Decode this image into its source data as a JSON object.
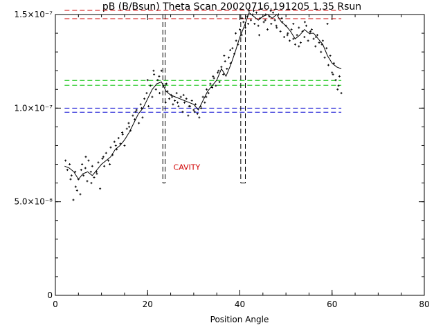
{
  "chart_data": {
    "type": "scatter",
    "title": "pB (B/Bsun) Theta Scan 20020716.191205 1.35 Rsun",
    "xlabel": "Position Angle",
    "ylabel": "",
    "xlim": [
      0,
      80
    ],
    "ylim": [
      0,
      1.5e-07
    ],
    "grid": false,
    "x_ticks": [
      {
        "value": 0,
        "label": "0"
      },
      {
        "value": 20,
        "label": "20"
      },
      {
        "value": 40,
        "label": "40"
      },
      {
        "value": 60,
        "label": "60"
      },
      {
        "value": 80,
        "label": "80"
      }
    ],
    "y_ticks": [
      {
        "value": 0,
        "label": "0"
      },
      {
        "value": 5e-08,
        "label": "5.0×10⁻⁸"
      },
      {
        "value": 1e-07,
        "label": "1.0×10⁻⁷"
      },
      {
        "value": 1.5e-07,
        "label": "1.5×10⁻⁷"
      }
    ],
    "annotations": [
      {
        "text": "CAVITY",
        "x": 28.5,
        "y": 6.7e-08,
        "color": "#d00000"
      }
    ],
    "reference_lines": [
      {
        "y": 1.522e-07,
        "x_range": [
          2,
          62
        ],
        "color": "#d00000",
        "style": "dashed"
      },
      {
        "y": 1.478e-07,
        "x_range": [
          2,
          62
        ],
        "color": "#d00000",
        "style": "dashed"
      },
      {
        "y": 1.148e-07,
        "x_range": [
          2,
          62
        ],
        "color": "#00c000",
        "style": "dashed"
      },
      {
        "y": 1.122e-07,
        "x_range": [
          2,
          62
        ],
        "color": "#00c000",
        "style": "dashed"
      },
      {
        "y": 1e-07,
        "x_range": [
          2,
          62
        ],
        "color": "#0000d0",
        "style": "dashed"
      },
      {
        "y": 9.78e-08,
        "x_range": [
          2,
          62
        ],
        "color": "#0000d0",
        "style": "dashed"
      }
    ],
    "cavity_boundaries": [
      {
        "x": [
          23.3,
          23.8
        ],
        "y_range": [
          6e-08,
          1.5e-07
        ],
        "color": "#000000",
        "style": "dashed"
      },
      {
        "x": [
          40.2,
          41.2
        ],
        "y_range": [
          6e-08,
          1.5e-07
        ],
        "color": "#000000",
        "style": "dashed"
      }
    ],
    "series": [
      {
        "kind": "smoothed-line",
        "color": "#000000",
        "x": [
          2,
          3,
          4,
          5,
          6,
          7,
          8,
          9,
          10,
          11,
          12,
          13,
          14,
          15,
          16,
          17,
          18,
          19,
          20,
          21,
          22,
          23,
          24,
          25,
          26,
          27,
          28,
          29,
          30,
          31,
          32,
          33,
          34,
          35,
          36,
          37,
          38,
          39,
          40,
          41,
          42,
          43,
          44,
          45,
          46,
          47,
          48,
          49,
          50,
          51,
          52,
          53,
          54,
          55,
          56,
          57,
          58,
          59,
          60,
          61,
          62
        ],
        "y": [
          6.9e-08,
          6.8e-08,
          6.6e-08,
          6.2e-08,
          6.5e-08,
          6.6e-08,
          6.4e-08,
          6.7e-08,
          7e-08,
          7.2e-08,
          7.4e-08,
          7.8e-08,
          8e-08,
          8.3e-08,
          8.7e-08,
          9.2e-08,
          9.7e-08,
          1e-07,
          1.05e-07,
          1.1e-07,
          1.13e-07,
          1.14e-07,
          1.09e-07,
          1.07e-07,
          1.06e-07,
          1.05e-07,
          1.04e-07,
          1.03e-07,
          1.02e-07,
          9.9e-08,
          1.04e-07,
          1.09e-07,
          1.12e-07,
          1.15e-07,
          1.21e-07,
          1.17e-07,
          1.23e-07,
          1.3e-07,
          1.38e-07,
          1.44e-07,
          1.51e-07,
          1.49e-07,
          1.47e-07,
          1.49e-07,
          1.5e-07,
          1.48e-07,
          1.5e-07,
          1.46e-07,
          1.44e-07,
          1.41e-07,
          1.37e-07,
          1.39e-07,
          1.42e-07,
          1.4e-07,
          1.4e-07,
          1.37e-07,
          1.34e-07,
          1.28e-07,
          1.24e-07,
          1.22e-07,
          1.21e-07
        ]
      },
      {
        "kind": "points",
        "color": "#000000",
        "marker": "+",
        "x": [
          2.2,
          2.6,
          3.1,
          3.5,
          3.9,
          4.3,
          4.7,
          5.0,
          5.4,
          5.8,
          6.1,
          6.5,
          6.9,
          7.2,
          7.7,
          8.0,
          8.4,
          8.9,
          9.3,
          9.7,
          10.2,
          10.6,
          11.0,
          11.5,
          12.0,
          12.4,
          12.8,
          13.3,
          13.7,
          14.1,
          14.6,
          15.0,
          15.5,
          15.9,
          16.3,
          16.8,
          17.2,
          17.6,
          18.1,
          18.5,
          18.9,
          19.3,
          19.8,
          20.2,
          20.6,
          21.0,
          21.4,
          21.8,
          22.2,
          22.6,
          23.0,
          23.4,
          23.9,
          24.3,
          24.7,
          25.1,
          25.5,
          25.9,
          26.3,
          26.7,
          27.2,
          27.6,
          28.0,
          28.4,
          28.8,
          29.2,
          29.6,
          30.0,
          30.4,
          30.8,
          31.2,
          31.6,
          32.0,
          32.4,
          32.8,
          33.2,
          33.6,
          34.0,
          34.4,
          34.8,
          35.2,
          35.6,
          36.0,
          36.4,
          36.8,
          37.2,
          37.6,
          38.0,
          38.4,
          38.8,
          39.2,
          39.6,
          40.0,
          40.4,
          40.8,
          41.2,
          41.6,
          42.0,
          42.4,
          42.8,
          43.2,
          43.6,
          44.0,
          44.4,
          44.8,
          45.2,
          45.6,
          46.0,
          46.4,
          46.8,
          47.2,
          47.6,
          48.0,
          48.4,
          48.8,
          49.2,
          49.6,
          50.0,
          50.4,
          50.8,
          51.2,
          51.6,
          52.0,
          52.4,
          52.8,
          53.2,
          53.6,
          54.0,
          54.4,
          54.8,
          55.2,
          55.6,
          56.0,
          56.4,
          56.8,
          57.2,
          57.6,
          58.0,
          58.4,
          58.8,
          59.2,
          59.6,
          60.0,
          60.4,
          60.8,
          61.2,
          61.6,
          62.0,
          3.3,
          4.4,
          5.6,
          6.6,
          7.8,
          9.0,
          10.4,
          11.8,
          13.1,
          14.5,
          16.0,
          17.4,
          18.7,
          20.0,
          21.3,
          22.5,
          24.1,
          25.3,
          26.5,
          27.8,
          29.0,
          30.2,
          31.5,
          32.7,
          34.2,
          35.4,
          36.6,
          37.9,
          39.1,
          40.5,
          41.8,
          43.0,
          44.2,
          45.5,
          46.7,
          47.9,
          49.1,
          50.3,
          51.6,
          52.8,
          54.1,
          55.3,
          56.5,
          57.8,
          59.0,
          60.2,
          61.4
        ],
        "y": [
          7.2e-08,
          6.7e-08,
          7e-08,
          6.4e-08,
          5.1e-08,
          6.6e-08,
          5.6e-08,
          6.2e-08,
          5.4e-08,
          7e-08,
          6.4e-08,
          6.8e-08,
          6.1e-08,
          7.2e-08,
          6.6e-08,
          6.9e-08,
          6.3e-08,
          6.6e-08,
          7.1e-08,
          5.7e-08,
          7.3e-08,
          6.9e-08,
          7.6e-08,
          7.2e-08,
          7.9e-08,
          7.5e-08,
          8.2e-08,
          7.8e-08,
          8.4e-08,
          8.1e-08,
          8.6e-08,
          8e-08,
          8.9e-08,
          9.2e-08,
          8.8e-08,
          9.6e-08,
          9.4e-08,
          9.9e-08,
          9.2e-08,
          1.02e-07,
          9.5e-08,
          1.05e-07,
          1.08e-07,
          1.01e-07,
          1.12e-07,
          1.06e-07,
          1.18e-07,
          1.1e-07,
          1.15e-07,
          1.08e-07,
          1.2e-07,
          1.12e-07,
          1.03e-07,
          1.09e-07,
          1.05e-07,
          1.07e-07,
          1.02e-07,
          1.04e-07,
          1.08e-07,
          1.01e-07,
          1.06e-07,
          9.8e-08,
          1.03e-07,
          1.05e-07,
          9.6e-08,
          1.01e-07,
          1.04e-07,
          9.9e-08,
          1.02e-07,
          9.7e-08,
          9.5e-08,
          1e-07,
          1.06e-07,
          1.03e-07,
          1.1e-07,
          1.08e-07,
          1.13e-07,
          1.11e-07,
          1.16e-07,
          1.12e-07,
          1.19e-07,
          1.14e-07,
          1.22e-07,
          1.18e-07,
          1.25e-07,
          1.21e-07,
          1.27e-07,
          1.24e-07,
          1.32e-07,
          1.29e-07,
          1.36e-07,
          1.34e-07,
          1.42e-07,
          1.39e-07,
          1.46e-07,
          1.43e-07,
          1.49e-07,
          1.52e-07,
          1.47e-07,
          1.5e-07,
          1.45e-07,
          1.51e-07,
          1.44e-07,
          1.48e-07,
          1.53e-07,
          1.46e-07,
          1.5e-07,
          1.42e-07,
          1.49e-07,
          1.45e-07,
          1.51e-07,
          1.47e-07,
          1.43e-07,
          1.5e-07,
          1.41e-07,
          1.46e-07,
          1.38e-07,
          1.44e-07,
          1.4e-07,
          1.36e-07,
          1.42e-07,
          1.37e-07,
          1.34e-07,
          1.39e-07,
          1.43e-07,
          1.35e-07,
          1.41e-07,
          1.38e-07,
          1.44e-07,
          1.36e-07,
          1.4e-07,
          1.42e-07,
          1.37e-07,
          1.33e-07,
          1.39e-07,
          1.35e-07,
          1.3e-07,
          1.36e-07,
          1.27e-07,
          1.32e-07,
          1.23e-07,
          1.28e-07,
          1.19e-07,
          1.24e-07,
          1.15e-07,
          1.1e-07,
          1.17e-07,
          1.08e-07,
          6.2e-08,
          5.8e-08,
          6.7e-08,
          7.4e-08,
          6e-08,
          6.5e-08,
          7.4e-08,
          7e-08,
          8e-08,
          8.7e-08,
          9e-08,
          9.8e-08,
          1e-07,
          1.15e-07,
          1.2e-07,
          1.17e-07,
          1.13e-07,
          1.06e-07,
          1.03e-07,
          1.07e-07,
          1.01e-07,
          9.8e-08,
          1.01e-07,
          1.06e-07,
          1.17e-07,
          1.2e-07,
          1.28e-07,
          1.31e-07,
          1.4e-07,
          1.48e-07,
          1.45e-07,
          1.52e-07,
          1.39e-07,
          1.47e-07,
          1.52e-07,
          1.44e-07,
          1.48e-07,
          1.39e-07,
          1.45e-07,
          1.33e-07,
          1.46e-07,
          1.41e-07,
          1.38e-07,
          1.34e-07,
          1.45e-07,
          1.18e-07,
          1.12e-07
        ]
      }
    ]
  }
}
